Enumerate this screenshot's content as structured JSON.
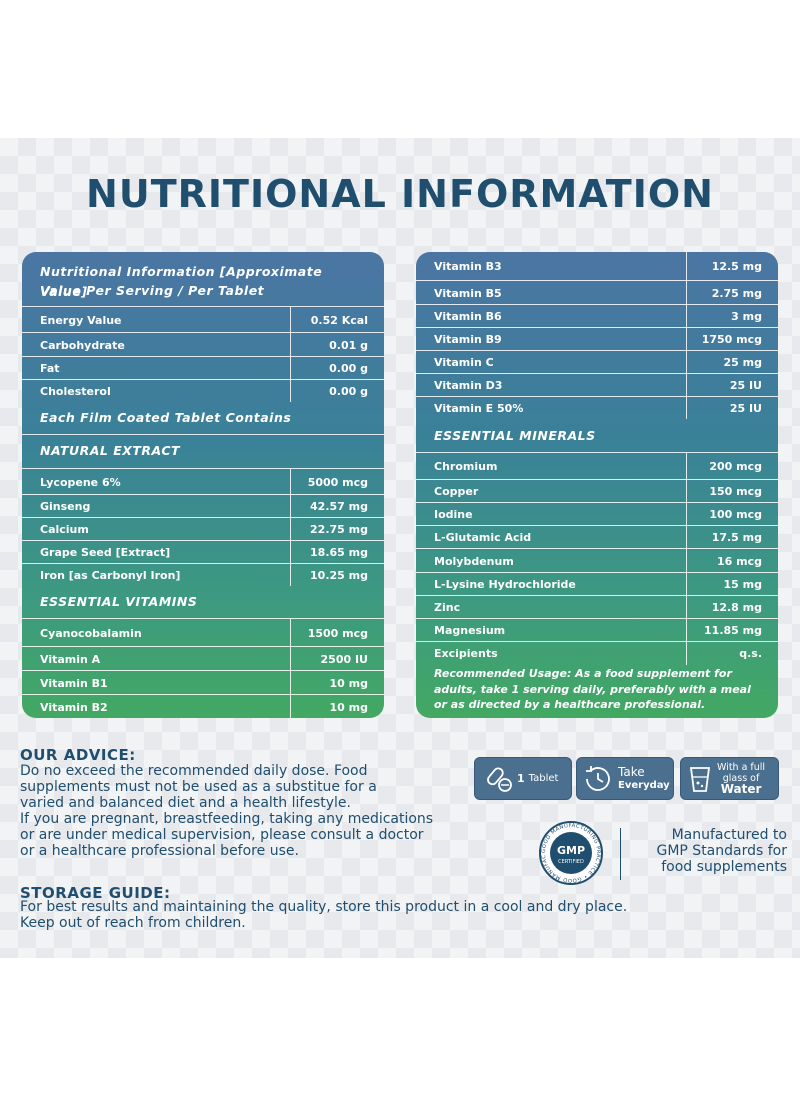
{
  "title": "NUTRITIONAL INFORMATION",
  "left": {
    "header_line1": "Nutritional Information [Approximate Value]",
    "header_line2": "Value Per Serving / Per Tablet",
    "basics": [
      {
        "name": "Energy Value",
        "value": "0.52 Kcal"
      },
      {
        "name": "Carbohydrate",
        "value": "0.01 g"
      },
      {
        "name": "Fat",
        "value": "0.00 g"
      },
      {
        "name": "Cholesterol",
        "value": "0.00 g"
      }
    ],
    "film_heading": "Each Film Coated Tablet Contains",
    "natural_heading": "NATURAL EXTRACT",
    "natural": [
      {
        "name": "Lycopene 6%",
        "value": "5000 mcg"
      },
      {
        "name": "Ginseng",
        "value": "42.57 mg"
      },
      {
        "name": "Calcium",
        "value": "22.75 mg"
      },
      {
        "name": "Grape Seed [Extract]",
        "value": "18.65 mg"
      },
      {
        "name": "Iron [as Carbonyl Iron]",
        "value": "10.25 mg"
      }
    ],
    "vitamins_heading": "ESSENTIAL VITAMINS",
    "vitamins": [
      {
        "name": "Cyanocobalamin",
        "value": "1500 mcg"
      },
      {
        "name": "Vitamin A",
        "value": "2500 IU"
      },
      {
        "name": "Vitamin B1",
        "value": "10 mg"
      },
      {
        "name": "Vitamin B2",
        "value": "10 mg"
      }
    ]
  },
  "right": {
    "vitamins": [
      {
        "name": "Vitamin B3",
        "value": "12.5 mg"
      },
      {
        "name": "Vitamin B5",
        "value": "2.75 mg"
      },
      {
        "name": "Vitamin B6",
        "value": "3 mg"
      },
      {
        "name": "Vitamin B9",
        "value": "1750 mcg"
      },
      {
        "name": "Vitamin C",
        "value": "25 mg"
      },
      {
        "name": "Vitamin D3",
        "value": "25 IU"
      },
      {
        "name": "Vitamin E 50%",
        "value": "25 IU"
      }
    ],
    "minerals_heading": "ESSENTIAL MINERALS",
    "minerals": [
      {
        "name": "Chromium",
        "value": "200 mcg"
      },
      {
        "name": "Copper",
        "value": "150 mcg"
      },
      {
        "name": "Iodine",
        "value": "100 mcg"
      },
      {
        "name": "L-Glutamic Acid",
        "value": "17.5 mg"
      },
      {
        "name": "Molybdenum",
        "value": "16 mcg"
      },
      {
        "name": "L-Lysine Hydrochloride",
        "value": "15 mg"
      },
      {
        "name": "Zinc",
        "value": "12.8 mg"
      },
      {
        "name": "Magnesium",
        "value": "11.85 mg"
      },
      {
        "name": "Excipients",
        "value": "q.s."
      }
    ],
    "usage_note": "Recommended Usage: As a food supplement for adults, take 1 serving daily, preferably with a meal or as directed by a healthcare professional."
  },
  "advice": {
    "heading": "OUR ADVICE:",
    "text": "Do no exceed the recommended daily dose. Food\nsupplements must not be used as a substitue for a\nvaried and balanced diet and a health lifestyle.\nIf you are pregnant, breastfeeding, taking any medications\nor are under medical supervision, please consult a doctor\nor a healthcare professional before use."
  },
  "badges": {
    "tablet_count": "1",
    "tablet_label": "Tablet",
    "take_line1": "Take",
    "take_line2": "Everyday",
    "water_line1": "With a full",
    "water_line2": "glass of",
    "water_line3": "Water"
  },
  "gmp": {
    "seal_main": "GMP",
    "seal_sub": "CERTIFIED",
    "seal_ring": "GOOD MANUFACTURING PRACTICE",
    "statement": "Manufactured to\nGMP Standards for\nfood supplements"
  },
  "storage": {
    "heading": "STORAGE GUIDE:",
    "text": "For best results and maintaining the quality, store this product in a cool and dry place.\nKeep out of reach from children."
  },
  "colors": {
    "title": "#1f4e6e",
    "card_top": "#4b75a3",
    "card_bottom": "#43a862",
    "badge": "#4a6f8f"
  }
}
